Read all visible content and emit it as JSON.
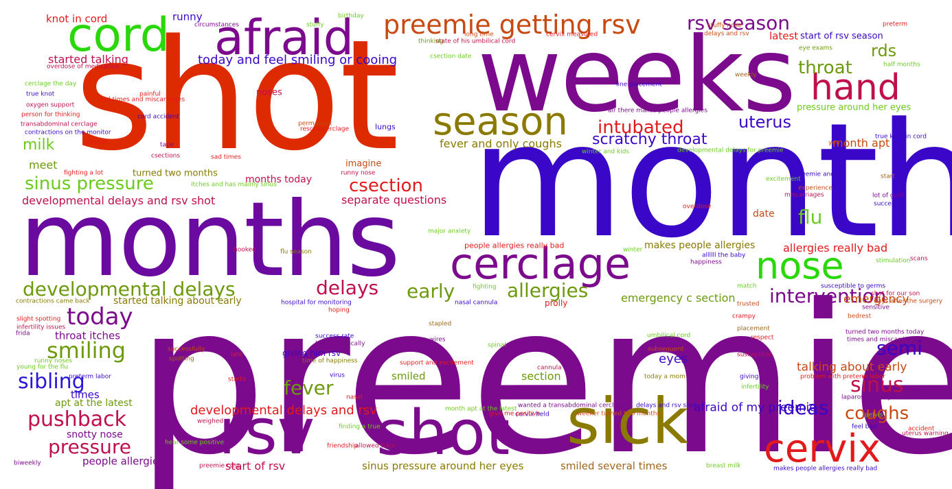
{
  "palette": {
    "red": "#e31a1c",
    "orange_red": "#dd2a00",
    "purple": "#7b0a8c",
    "violet": "#6a0a9e",
    "blue": "#3a06c8",
    "bright_blue": "#2a16d8",
    "green": "#2ad80a",
    "olive": "#8a7a00",
    "leaf": "#6c9a0c",
    "crimson": "#c0104a",
    "rust": "#c84a12",
    "brown": "#a0641a",
    "lime": "#6acb1c",
    "grass": "#4fb62b"
  },
  "words": [
    {
      "text": "preemie",
      "color": "#7b0a8c"
    },
    {
      "text": "shot",
      "color": "#dd2a00"
    },
    {
      "text": "month",
      "color": "#3a06c8"
    },
    {
      "text": "weeks",
      "color": "#7b0a8c"
    },
    {
      "text": "months",
      "color": "#6a0a9e"
    },
    {
      "text": "sick",
      "color": "#8a7a00"
    },
    {
      "text": "rsv",
      "color": "#7b0a8c"
    },
    {
      "text": "shot",
      "color": "#7b0a8c"
    },
    {
      "text": "afraid",
      "color": "#7b0a8c"
    },
    {
      "text": "cord",
      "color": "#2ad80a"
    },
    {
      "text": "cerclage",
      "color": "#7b0a8c"
    },
    {
      "text": "cervix",
      "color": "#e31a1c"
    },
    {
      "text": "nose",
      "color": "#2ad80a"
    },
    {
      "text": "season",
      "color": "#8a7a00"
    },
    {
      "text": "hand",
      "color": "#c0104a"
    },
    {
      "text": "preemie getting rsv",
      "color": "#c84a12"
    },
    {
      "text": "rsv season",
      "color": "#7b0a8c"
    },
    {
      "text": "developmental delays",
      "color": "#6c9a0c"
    },
    {
      "text": "pushback",
      "color": "#c0104a"
    },
    {
      "text": "pressure",
      "color": "#c0104a"
    },
    {
      "text": "sibling",
      "color": "#2a16d8"
    },
    {
      "text": "today",
      "color": "#7b0a8c"
    },
    {
      "text": "smiling",
      "color": "#6c9a0c"
    },
    {
      "text": "fever",
      "color": "#6c9a0c"
    },
    {
      "text": "delays",
      "color": "#c0104a"
    },
    {
      "text": "early",
      "color": "#6c9a0c"
    },
    {
      "text": "allergies",
      "color": "#6c9a0c"
    },
    {
      "text": "intervention",
      "color": "#7b0a8c"
    },
    {
      "text": "csection",
      "color": "#e31a1c"
    },
    {
      "text": "sinus pressure",
      "color": "#6acb1c"
    },
    {
      "text": "intubated",
      "color": "#e31a1c"
    },
    {
      "text": "scratchy throat",
      "color": "#3a06c8"
    },
    {
      "text": "throat",
      "color": "#6c9a0c"
    },
    {
      "text": "uterus",
      "color": "#3a06c8"
    },
    {
      "text": "rds",
      "color": "#6c9a0c"
    },
    {
      "text": "flu",
      "color": "#6acb1c"
    },
    {
      "text": "semi",
      "color": "#3a06c8"
    },
    {
      "text": "sinus",
      "color": "#c0104a"
    },
    {
      "text": "coughs",
      "color": "#c84a12"
    },
    {
      "text": "ideas",
      "color": "#3a06c8"
    },
    {
      "text": "milk",
      "color": "#6acb1c"
    },
    {
      "text": "today and feel smiling or cooing",
      "color": "#3a06c8"
    },
    {
      "text": "fever and only coughs",
      "color": "#8a7a00"
    },
    {
      "text": "month apt",
      "color": "#c84a12"
    },
    {
      "text": "developmental delays and rsv shot",
      "color": "#c0104a"
    },
    {
      "text": "separate questions",
      "color": "#c0104a"
    },
    {
      "text": "months today",
      "color": "#c0104a"
    },
    {
      "text": "developmental delays and rsv",
      "color": "#e31a1c"
    },
    {
      "text": "start of rsv",
      "color": "#c0104a"
    },
    {
      "text": "sinus pressure around her eyes",
      "color": "#8a7a00"
    },
    {
      "text": "smiled several times",
      "color": "#a0641a"
    },
    {
      "text": "people allergies",
      "color": "#7b0a8c"
    },
    {
      "text": "section",
      "color": "#6c9a0c"
    },
    {
      "text": "smiled",
      "color": "#6c9a0c"
    },
    {
      "text": "eyes",
      "color": "#3a06c8"
    },
    {
      "text": "talking about early",
      "color": "#c84a12"
    },
    {
      "text": "afraid of my preemie",
      "color": "#3a06c8"
    },
    {
      "text": "emergency c section",
      "color": "#6c9a0c"
    },
    {
      "text": "emergency",
      "color": "#c84a12"
    },
    {
      "text": "allergies really bad",
      "color": "#e31a1c"
    },
    {
      "text": "makes people allergies",
      "color": "#8a7a00"
    },
    {
      "text": "started talking about early",
      "color": "#8a7a00"
    },
    {
      "text": "throat itches",
      "color": "#7b0a8c"
    },
    {
      "text": "times",
      "color": "#3a06c8"
    },
    {
      "text": "apt at the latest",
      "color": "#6c9a0c"
    },
    {
      "text": "snotty nose",
      "color": "#7b0a8c"
    },
    {
      "text": "meet",
      "color": "#6c9a0c"
    },
    {
      "text": "turned two months",
      "color": "#8a7a00"
    },
    {
      "text": "imagine",
      "color": "#c84a12"
    },
    {
      "text": "date",
      "color": "#c84a12"
    },
    {
      "text": "latest",
      "color": "#e31a1c"
    },
    {
      "text": "start of rsv season",
      "color": "#3a06c8"
    },
    {
      "text": "pressure around her eyes",
      "color": "#6acb1c"
    },
    {
      "text": "knot in cord",
      "color": "#e31a1c"
    },
    {
      "text": "started talking",
      "color": "#c0104a"
    },
    {
      "text": "runny",
      "color": "#3a06c8"
    },
    {
      "text": "noses",
      "color": "#c0104a"
    },
    {
      "text": "lungs",
      "color": "#3a06c8"
    },
    {
      "text": "people allergies really bad",
      "color": "#e31a1c"
    },
    {
      "text": "giving him rsv",
      "color": "#3a06c8"
    },
    {
      "text": "prolly",
      "color": "#e31a1c"
    },
    {
      "text": "circumstances",
      "color": "#7b0a8c"
    },
    {
      "text": "stuffy",
      "color": "#6acb1c"
    },
    {
      "text": "birthday",
      "color": "#6acb1c"
    },
    {
      "text": "long time",
      "color": "#c84a12"
    },
    {
      "text": "cervix measured",
      "color": "#e31a1c"
    },
    {
      "text": "stuffy nose",
      "color": "#c84a12"
    },
    {
      "text": "preterm",
      "color": "#e31a1c"
    },
    {
      "text": "delays and rsv",
      "color": "#c84a12"
    },
    {
      "text": "thinking",
      "color": "#6c9a0c"
    },
    {
      "text": "state of his umbilical cord",
      "color": "#c0104a"
    },
    {
      "text": "eye exams",
      "color": "#6c9a0c"
    },
    {
      "text": "csection date",
      "color": "#6acb1c"
    },
    {
      "text": "weekly",
      "color": "#a0641a"
    },
    {
      "text": "half months",
      "color": "#6acb1c"
    },
    {
      "text": "overdose of medication",
      "color": "#c0104a"
    },
    {
      "text": "cerclage the day",
      "color": "#6acb1c"
    },
    {
      "text": "true knot",
      "color": "#3a06c8"
    },
    {
      "text": "oxygen support",
      "color": "#c0104a"
    },
    {
      "text": "person for thinking",
      "color": "#e31a1c"
    },
    {
      "text": "transabdominal cerclage",
      "color": "#c0104a"
    },
    {
      "text": "contractions on the monitor",
      "color": "#3a06c8"
    },
    {
      "text": "painful",
      "color": "#e31a1c"
    },
    {
      "text": "sad times and miscarriages",
      "color": "#e31a1c"
    },
    {
      "text": "cord accident",
      "color": "#3a06c8"
    },
    {
      "text": "success",
      "color": "#e31a1c"
    },
    {
      "text": "tape",
      "color": "#7b0a8c"
    },
    {
      "text": "csections",
      "color": "#c0104a"
    },
    {
      "text": "sad times",
      "color": "#e31a1c"
    },
    {
      "text": "permanent",
      "color": "#c84a12"
    },
    {
      "text": "rescue cerclage",
      "color": "#e31a1c"
    },
    {
      "text": "line placement",
      "color": "#3a06c8"
    },
    {
      "text": "air there makes people allergies",
      "color": "#7b0a8c"
    },
    {
      "text": "true knot in cord",
      "color": "#3a06c8"
    },
    {
      "text": "developmental delays for preemie",
      "color": "#6acb1c"
    },
    {
      "text": "winter and kids",
      "color": "#6acb1c"
    },
    {
      "text": "yea",
      "color": "#c84a12"
    },
    {
      "text": "fighting a lot",
      "color": "#e31a1c"
    },
    {
      "text": "itches and has mainly sinus",
      "color": "#6acb1c"
    },
    {
      "text": "runny nose",
      "color": "#c0104a"
    },
    {
      "text": "preemie and rsv",
      "color": "#3a06c8"
    },
    {
      "text": "excitement",
      "color": "#6acb1c"
    },
    {
      "text": "experience",
      "color": "#c84a12"
    },
    {
      "text": "start",
      "color": "#a0641a"
    },
    {
      "text": "lot of guilt",
      "color": "#7b0a8c"
    },
    {
      "text": "successful",
      "color": "#3a06c8"
    },
    {
      "text": "miscarriages",
      "color": "#c0104a"
    },
    {
      "text": "overdose",
      "color": "#e31a1c"
    },
    {
      "text": "major anxiety",
      "color": "#6acb1c"
    },
    {
      "text": "hooked",
      "color": "#c0104a"
    },
    {
      "text": "flu season",
      "color": "#8a7a00"
    },
    {
      "text": "winter",
      "color": "#6acb1c"
    },
    {
      "text": "allllll the baby",
      "color": "#3a06c8"
    },
    {
      "text": "happiness",
      "color": "#7b0a8c"
    },
    {
      "text": "stimulation",
      "color": "#6acb1c"
    },
    {
      "text": "scans",
      "color": "#c0104a"
    },
    {
      "text": "fighting",
      "color": "#6acb1c"
    },
    {
      "text": "match",
      "color": "#6acb1c"
    },
    {
      "text": "susceptible to germs",
      "color": "#3a06c8"
    },
    {
      "text": "shot for our son",
      "color": "#c0104a"
    },
    {
      "text": "days after the surgery",
      "color": "#c84a12"
    },
    {
      "text": "contractions came back",
      "color": "#8a7a00"
    },
    {
      "text": "hospital for monitoring",
      "color": "#3a06c8"
    },
    {
      "text": "nasal cannula",
      "color": "#3a06c8"
    },
    {
      "text": "trusted",
      "color": "#c84a12"
    },
    {
      "text": "sensitive",
      "color": "#7b0a8c"
    },
    {
      "text": "bedrest",
      "color": "#c84a12"
    },
    {
      "text": "slight spotting",
      "color": "#e31a1c"
    },
    {
      "text": "infertility issues",
      "color": "#c0104a"
    },
    {
      "text": "frida",
      "color": "#7b0a8c"
    },
    {
      "text": "hoping",
      "color": "#e31a1c"
    },
    {
      "text": "stapled",
      "color": "#a0641a"
    },
    {
      "text": "crampy",
      "color": "#e31a1c"
    },
    {
      "text": "placement",
      "color": "#a0641a"
    },
    {
      "text": "success rate",
      "color": "#3a06c8"
    },
    {
      "text": "laparoscopically",
      "color": "#7b0a8c"
    },
    {
      "text": "wires",
      "color": "#7b0a8c"
    },
    {
      "text": "spinal",
      "color": "#6acb1c"
    },
    {
      "text": "umbilical cord",
      "color": "#6acb1c"
    },
    {
      "text": "respect",
      "color": "#e31a1c"
    },
    {
      "text": "turned two months today",
      "color": "#7b0a8c"
    },
    {
      "text": "times and miscarriages",
      "color": "#7b0a8c"
    },
    {
      "text": "successfully",
      "color": "#c84a12"
    },
    {
      "text": "spotting",
      "color": "#a0641a"
    },
    {
      "text": "late",
      "color": "#e31a1c"
    },
    {
      "text": "subsequent",
      "color": "#c84a12"
    },
    {
      "text": "susceptible",
      "color": "#c0104a"
    },
    {
      "text": "young for the flu",
      "color": "#6acb1c"
    },
    {
      "text": "runny noses",
      "color": "#6acb1c"
    },
    {
      "text": "preterm labor",
      "color": "#3a06c8"
    },
    {
      "text": "time of happiness",
      "color": "#8a7a00"
    },
    {
      "text": "support and excitement",
      "color": "#e31a1c"
    },
    {
      "text": "virus",
      "color": "#3a06c8"
    },
    {
      "text": "starts",
      "color": "#e31a1c"
    },
    {
      "text": "cannula",
      "color": "#c0104a"
    },
    {
      "text": "today a mom",
      "color": "#8a7a00"
    },
    {
      "text": "giving",
      "color": "#3a06c8"
    },
    {
      "text": "problem with preterm labor",
      "color": "#e31a1c"
    },
    {
      "text": "infertility",
      "color": "#6acb1c"
    },
    {
      "text": "nasal",
      "color": "#e31a1c"
    },
    {
      "text": "wanted a transabdominal cerclage",
      "color": "#7b0a8c"
    },
    {
      "text": "delays and rsv shot",
      "color": "#3a06c8"
    },
    {
      "text": "laparoscopically with a doctor",
      "color": "#7b0a8c"
    },
    {
      "text": "month apt at the latest",
      "color": "#6acb1c"
    },
    {
      "text": "weeker turned two months",
      "color": "#c84a12"
    },
    {
      "text": "pelvis",
      "color": "#6acb1c"
    },
    {
      "text": "cervix held",
      "color": "#3a06c8"
    },
    {
      "text": "give me positive",
      "color": "#e31a1c"
    },
    {
      "text": "weighed",
      "color": "#c0104a"
    },
    {
      "text": "finding a true",
      "color": "#6acb1c"
    },
    {
      "text": "feel bad",
      "color": "#3a06c8"
    },
    {
      "text": "accident",
      "color": "#e31a1c"
    },
    {
      "text": "uterus warning",
      "color": "#c0104a"
    },
    {
      "text": "hear some positive",
      "color": "#6acb1c"
    },
    {
      "text": "friendship",
      "color": "#e31a1c"
    },
    {
      "text": "allowed back",
      "color": "#c0104a"
    },
    {
      "text": "biweekly",
      "color": "#7b0a8c"
    },
    {
      "text": "preemie cusp",
      "color": "#c0104a"
    },
    {
      "text": "breast milk",
      "color": "#6acb1c"
    },
    {
      "text": "makes people allergies really bad",
      "color": "#3a06c8"
    }
  ]
}
